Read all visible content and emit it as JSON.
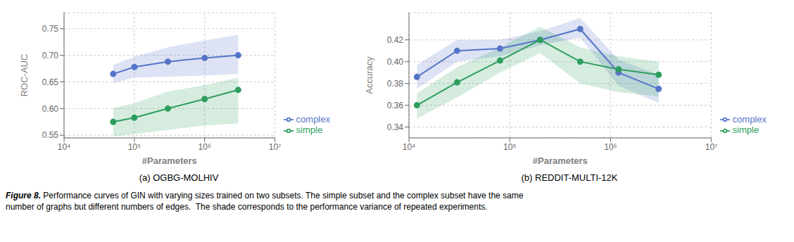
{
  "chart_data": [
    {
      "type": "line",
      "title": "(a) OGBG-MOLHIV",
      "xlabel": "#Parameters",
      "ylabel": "ROC-AUC",
      "log": "x",
      "grid": true,
      "legend": "lower right",
      "x": [
        50000,
        100000,
        300000,
        1000000,
        3000000
      ],
      "xlim": [
        10000,
        10000000
      ],
      "xticks": [
        {
          "value": 10000,
          "label": "10⁴"
        },
        {
          "value": 100000,
          "label": "10⁵"
        },
        {
          "value": 1000000,
          "label": "10⁶"
        },
        {
          "value": 10000000,
          "label": "10⁷"
        }
      ],
      "ylim": [
        0.545,
        0.78
      ],
      "yticks": [
        0.55,
        {
          "value": 0.6,
          "label": "0.60"
        },
        0.65,
        {
          "value": 0.7,
          "label": "0.70"
        },
        0.75
      ],
      "series": [
        {
          "name": "complex",
          "color": "#5575c8",
          "marker": "circle",
          "values": [
            0.665,
            0.678,
            0.688,
            0.695,
            0.7
          ],
          "lower": [
            0.648,
            0.658,
            0.66,
            0.662,
            0.665
          ],
          "upper": [
            0.682,
            0.697,
            0.715,
            0.728,
            0.738
          ]
        },
        {
          "name": "simple",
          "color": "#2e9e5e",
          "marker": "circle",
          "values": [
            0.575,
            0.583,
            0.6,
            0.618,
            0.635
          ],
          "lower": [
            0.548,
            0.552,
            0.56,
            0.568,
            0.572
          ],
          "upper": [
            0.601,
            0.61,
            0.632,
            0.644,
            0.658
          ]
        }
      ]
    },
    {
      "type": "line",
      "title": "(b) REDDIT-MULTI-12K",
      "xlabel": "#Parameters",
      "ylabel": "Accuracy",
      "log": "x",
      "grid": true,
      "legend": "lower right",
      "x": [
        12000,
        30000,
        80000,
        200000,
        500000,
        1200000,
        3000000
      ],
      "xlim": [
        10000,
        10000000
      ],
      "xticks": [
        {
          "value": 10000,
          "label": "10⁴"
        },
        {
          "value": 100000,
          "label": "10⁵"
        },
        {
          "value": 1000000,
          "label": "10⁶"
        },
        {
          "value": 10000000,
          "label": "10⁷"
        }
      ],
      "ylim": [
        0.33,
        0.445
      ],
      "yticks": [
        0.34,
        0.36,
        0.38,
        {
          "value": 0.4,
          "label": "0.40"
        },
        0.42
      ],
      "series": [
        {
          "name": "complex",
          "color": "#5575c8",
          "marker": "circle",
          "values": [
            0.386,
            0.41,
            0.412,
            0.42,
            0.43,
            0.39,
            0.375
          ],
          "lower": [
            0.375,
            0.4,
            0.405,
            0.415,
            0.422,
            0.378,
            0.362
          ],
          "upper": [
            0.397,
            0.42,
            0.42,
            0.428,
            0.44,
            0.402,
            0.388
          ]
        },
        {
          "name": "simple",
          "color": "#2e9e5e",
          "marker": "circle",
          "values": [
            0.36,
            0.381,
            0.401,
            0.42,
            0.4,
            0.393,
            0.388
          ],
          "lower": [
            0.348,
            0.367,
            0.39,
            0.408,
            0.38,
            0.372,
            0.368
          ],
          "upper": [
            0.371,
            0.395,
            0.413,
            0.432,
            0.413,
            0.405,
            0.4
          ]
        }
      ]
    }
  ],
  "caption": {
    "label": "Figure 8.",
    "text": " Performance curves of GIN with varying sizes trained on two subsets. The simple subset and the complex subset have the same\nnumber of graphs but different numbers of edges.  The shade corresponds to the performance variance of repeated experiments."
  }
}
